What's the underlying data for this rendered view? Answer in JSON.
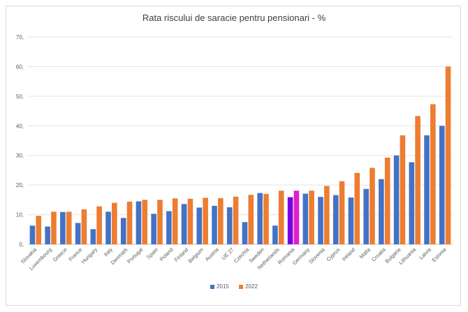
{
  "chart_data": {
    "type": "bar",
    "title": "Rata riscului de saracie pentru pensionari - %",
    "xlabel": "",
    "ylabel": "",
    "ylim": [
      0,
      70
    ],
    "yticks": [
      "0,",
      "10,",
      "20,",
      "30,",
      "40,",
      "50,",
      "60,",
      "70,"
    ],
    "grid": true,
    "legend_position": "bottom",
    "categories": [
      "Slovakia",
      "Luxembourg",
      "Greece",
      "France",
      "Hungary",
      "Italy",
      "Denmark",
      "Portugal",
      "Spain",
      "Poland",
      "Finland",
      "Belgium",
      "Austria",
      "UE 27",
      "Czechia",
      "Sweden",
      "Netherlands",
      "Romania",
      "Germany",
      "Slovenia",
      "Cyprus",
      "Ireland",
      "Malta",
      "Croatia",
      "Bulgaria",
      "Lithuania",
      "Latvia",
      "Estonia"
    ],
    "highlight": {
      "category": "Romania",
      "color_2015": "#7a00e0",
      "color_2022": "#e020c8"
    },
    "series": [
      {
        "name": "2015",
        "color": "#4472c4",
        "values": [
          6.3,
          6.0,
          10.9,
          7.2,
          5.1,
          11.0,
          8.9,
          14.5,
          10.3,
          11.2,
          13.6,
          12.4,
          13.0,
          12.5,
          7.5,
          17.3,
          6.3,
          15.9,
          17.1,
          16.0,
          16.6,
          15.8,
          18.7,
          22.0,
          30.0,
          27.7,
          36.8,
          40.0
        ]
      },
      {
        "name": "2022",
        "color": "#ed7d31",
        "values": [
          9.6,
          11.0,
          11.0,
          11.8,
          12.8,
          14.0,
          14.4,
          15.0,
          15.0,
          15.5,
          15.4,
          15.7,
          15.6,
          16.1,
          16.7,
          17.0,
          18.1,
          18.1,
          18.1,
          19.7,
          21.3,
          24.1,
          25.8,
          29.3,
          36.8,
          43.3,
          47.3,
          60.0
        ]
      }
    ]
  }
}
